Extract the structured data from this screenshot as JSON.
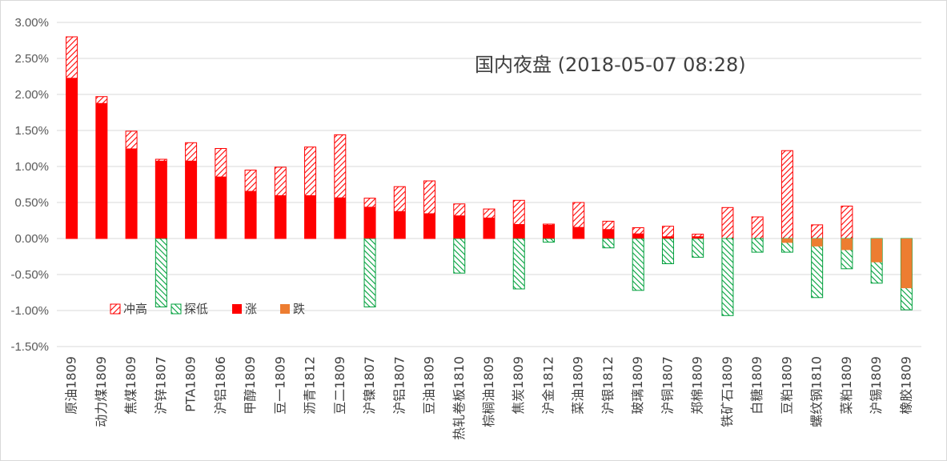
{
  "chart_data": {
    "type": "bar",
    "title": "国内夜盘 (2018-05-07 08:28)",
    "ylim": [
      -1.5,
      3.0
    ],
    "ytick_step": 0.5,
    "y_format": "percent_2dp",
    "grid": "horizontal",
    "legend_position": "lower-left inside",
    "colors": {
      "chong_gao": "#ff0000",
      "tan_di": "#00a03c",
      "zhang": "#ff0000",
      "die": "#ed7d31",
      "grid": "#d9d9d9",
      "text": "#595959"
    },
    "categories": [
      "原油1809",
      "动力煤1809",
      "焦煤1809",
      "沪锌1807",
      "PTA1809",
      "沪铝1806",
      "甲醇1809",
      "豆一1809",
      "沥青1812",
      "豆二1809",
      "沪镍1807",
      "沪铝1807",
      "豆油1809",
      "热轧卷板1810",
      "棕榈油1809",
      "焦炭1809",
      "沪金1812",
      "菜油1809",
      "沪银1812",
      "玻璃1809",
      "沪铜1807",
      "郑棉1809",
      "铁矿石1809",
      "白糖1809",
      "豆粕1809",
      "螺纹钢1810",
      "菜粕1809",
      "沪锡1809",
      "橡胶1809"
    ],
    "series": [
      {
        "name": "冲高",
        "values": [
          2.8,
          1.97,
          1.49,
          1.1,
          1.33,
          1.25,
          0.95,
          0.99,
          1.27,
          1.44,
          0.56,
          0.72,
          0.8,
          0.48,
          0.41,
          0.53,
          0.2,
          0.5,
          0.24,
          0.15,
          0.17,
          0.06,
          0.43,
          0.3,
          1.22,
          0.19,
          0.45,
          0.0,
          0.0
        ]
      },
      {
        "name": "探低",
        "values": [
          0.0,
          0.0,
          0.0,
          -0.95,
          0.0,
          0.0,
          0.0,
          0.0,
          0.0,
          0.0,
          -0.95,
          0.0,
          0.0,
          -0.48,
          0.0,
          -0.7,
          -0.05,
          0.0,
          -0.13,
          -0.72,
          -0.35,
          -0.26,
          -1.07,
          -0.19,
          -0.19,
          -0.82,
          -0.42,
          -0.62,
          -0.99
        ]
      },
      {
        "name": "涨",
        "values": [
          2.23,
          1.88,
          1.25,
          1.08,
          1.08,
          0.86,
          0.66,
          0.6,
          0.6,
          0.57,
          0.44,
          0.38,
          0.35,
          0.32,
          0.29,
          0.2,
          0.19,
          0.16,
          0.13,
          0.07,
          0.03,
          0.03,
          0.0,
          0.0,
          0.0,
          0.0,
          0.0,
          0.0,
          0.0
        ]
      },
      {
        "name": "跌",
        "values": [
          0.0,
          0.0,
          0.0,
          0.0,
          0.0,
          0.0,
          0.0,
          0.0,
          0.0,
          0.0,
          0.0,
          0.0,
          0.0,
          0.0,
          0.0,
          0.0,
          0.0,
          0.0,
          0.0,
          0.0,
          0.0,
          0.0,
          0.0,
          0.0,
          -0.06,
          -0.11,
          -0.16,
          -0.33,
          -0.69
        ]
      }
    ]
  }
}
